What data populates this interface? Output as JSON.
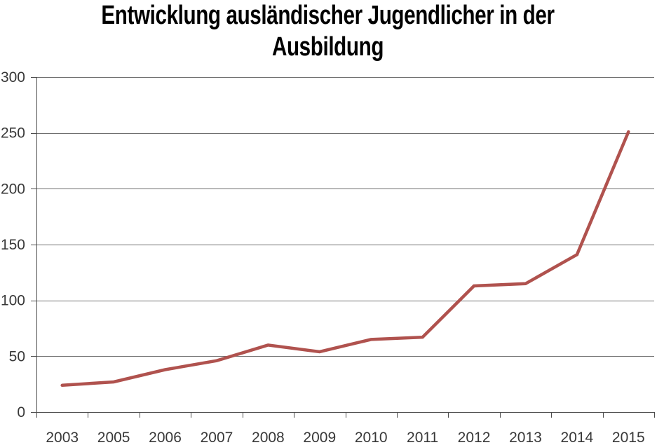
{
  "title": {
    "line1": "Entwicklung ausländischer Jugendlicher in der",
    "line2": "Ausbildung"
  },
  "chart_data": {
    "type": "line",
    "title": "Entwicklung ausländischer Jugendlicher in der Ausbildung",
    "categories": [
      "2003",
      "2005",
      "2006",
      "2007",
      "2008",
      "2009",
      "2010",
      "2011",
      "2012",
      "2013",
      "2014",
      "2015"
    ],
    "values": [
      24,
      27,
      38,
      46,
      60,
      54,
      65,
      67,
      113,
      115,
      141,
      251
    ],
    "xlabel": "",
    "ylabel": "",
    "ylim": [
      0,
      300
    ],
    "yticks": [
      0,
      50,
      100,
      150,
      200,
      250,
      300
    ],
    "grid": "horizontal",
    "legend": "none",
    "colors": {
      "line": "#b0524e",
      "gridline": "#6f6f6f",
      "axis": "#4d4d4d",
      "tick_label": "#383838",
      "title": "#000000",
      "background": "#ffffff"
    }
  }
}
